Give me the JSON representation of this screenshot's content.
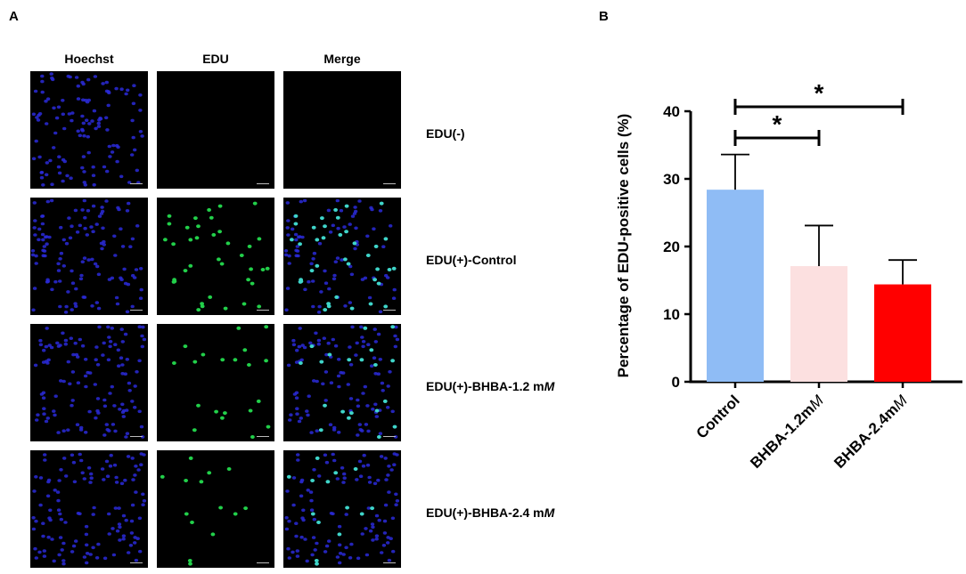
{
  "panel_a": {
    "letter": "A",
    "columns": [
      "Hoechst",
      "EDU",
      "Merge"
    ],
    "rows": [
      {
        "label_main": "EDU(-)",
        "label_unit": "",
        "green_cells": 0
      },
      {
        "label_main": "EDU(+)-Control",
        "label_unit": "",
        "green_cells": 38
      },
      {
        "label_main": "EDU(+)-BHBA-1.2 m",
        "label_unit": "M",
        "green_cells": 20
      },
      {
        "label_main": "EDU(+)-BHBA-2.4 m",
        "label_unit": "M",
        "green_cells": 14
      }
    ],
    "colors": {
      "nuclei": "#2a2ad8",
      "edu": "#22d04a",
      "merge_edu": "#3fd6c8"
    }
  },
  "panel_b": {
    "letter": "B"
  },
  "chart_data": {
    "type": "bar",
    "categories": [
      "Control",
      "BHBA-1.2mM",
      "BHBA-2.4mM"
    ],
    "category_labels": [
      {
        "main": "Control",
        "italic": ""
      },
      {
        "main": "BHBA-1.2m",
        "italic": "M"
      },
      {
        "main": "BHBA-2.4m",
        "italic": "M"
      }
    ],
    "values": [
      28.4,
      17.1,
      14.4
    ],
    "errors": [
      5.2,
      6.0,
      3.6
    ],
    "colors": [
      "#8fbcf5",
      "#fce0e0",
      "#ff0000"
    ],
    "ylabel": "Percentage of EDU-positive cells (%)",
    "xlabel": "",
    "ylim": [
      0,
      40
    ],
    "yticks": [
      0,
      10,
      20,
      30,
      40
    ],
    "significance": [
      {
        "from": "Control",
        "to": "BHBA-1.2mM",
        "label": "*"
      },
      {
        "from": "Control",
        "to": "BHBA-2.4mM",
        "label": "*"
      }
    ],
    "grid": false,
    "legend": "none"
  }
}
